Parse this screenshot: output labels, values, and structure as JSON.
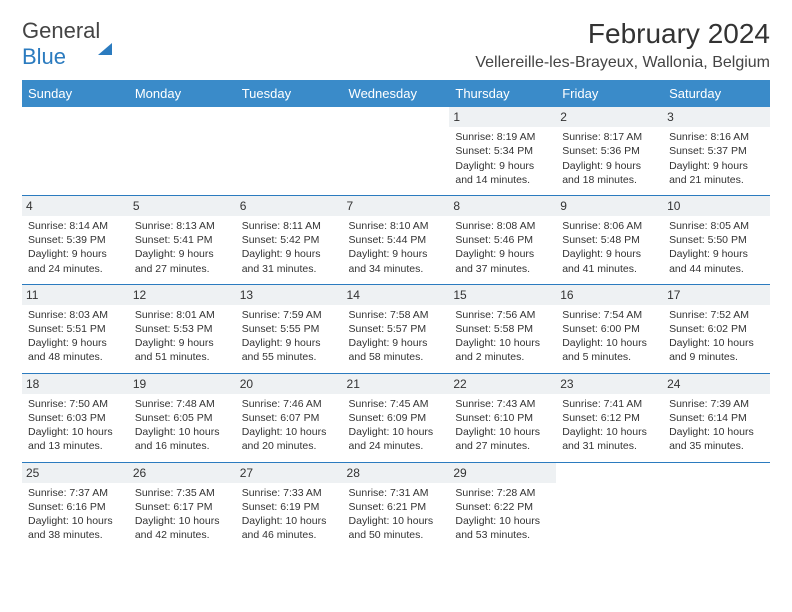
{
  "logo": {
    "text1": "General",
    "text2": "Blue"
  },
  "title": "February 2024",
  "location": "Vellereille-les-Brayeux, Wallonia, Belgium",
  "colors": {
    "header_bg": "#3a8bc9",
    "border": "#2b7bbf",
    "daynum_bg": "#eef1f3",
    "text": "#333333"
  },
  "weekdays": [
    "Sunday",
    "Monday",
    "Tuesday",
    "Wednesday",
    "Thursday",
    "Friday",
    "Saturday"
  ],
  "weeks": [
    [
      {
        "n": "",
        "empty": true
      },
      {
        "n": "",
        "empty": true
      },
      {
        "n": "",
        "empty": true
      },
      {
        "n": "",
        "empty": true
      },
      {
        "n": "1",
        "sr": "8:19 AM",
        "ss": "5:34 PM",
        "dl": "9 hours and 14 minutes."
      },
      {
        "n": "2",
        "sr": "8:17 AM",
        "ss": "5:36 PM",
        "dl": "9 hours and 18 minutes."
      },
      {
        "n": "3",
        "sr": "8:16 AM",
        "ss": "5:37 PM",
        "dl": "9 hours and 21 minutes."
      }
    ],
    [
      {
        "n": "4",
        "sr": "8:14 AM",
        "ss": "5:39 PM",
        "dl": "9 hours and 24 minutes."
      },
      {
        "n": "5",
        "sr": "8:13 AM",
        "ss": "5:41 PM",
        "dl": "9 hours and 27 minutes."
      },
      {
        "n": "6",
        "sr": "8:11 AM",
        "ss": "5:42 PM",
        "dl": "9 hours and 31 minutes."
      },
      {
        "n": "7",
        "sr": "8:10 AM",
        "ss": "5:44 PM",
        "dl": "9 hours and 34 minutes."
      },
      {
        "n": "8",
        "sr": "8:08 AM",
        "ss": "5:46 PM",
        "dl": "9 hours and 37 minutes."
      },
      {
        "n": "9",
        "sr": "8:06 AM",
        "ss": "5:48 PM",
        "dl": "9 hours and 41 minutes."
      },
      {
        "n": "10",
        "sr": "8:05 AM",
        "ss": "5:50 PM",
        "dl": "9 hours and 44 minutes."
      }
    ],
    [
      {
        "n": "11",
        "sr": "8:03 AM",
        "ss": "5:51 PM",
        "dl": "9 hours and 48 minutes."
      },
      {
        "n": "12",
        "sr": "8:01 AM",
        "ss": "5:53 PM",
        "dl": "9 hours and 51 minutes."
      },
      {
        "n": "13",
        "sr": "7:59 AM",
        "ss": "5:55 PM",
        "dl": "9 hours and 55 minutes."
      },
      {
        "n": "14",
        "sr": "7:58 AM",
        "ss": "5:57 PM",
        "dl": "9 hours and 58 minutes."
      },
      {
        "n": "15",
        "sr": "7:56 AM",
        "ss": "5:58 PM",
        "dl": "10 hours and 2 minutes."
      },
      {
        "n": "16",
        "sr": "7:54 AM",
        "ss": "6:00 PM",
        "dl": "10 hours and 5 minutes."
      },
      {
        "n": "17",
        "sr": "7:52 AM",
        "ss": "6:02 PM",
        "dl": "10 hours and 9 minutes."
      }
    ],
    [
      {
        "n": "18",
        "sr": "7:50 AM",
        "ss": "6:03 PM",
        "dl": "10 hours and 13 minutes."
      },
      {
        "n": "19",
        "sr": "7:48 AM",
        "ss": "6:05 PM",
        "dl": "10 hours and 16 minutes."
      },
      {
        "n": "20",
        "sr": "7:46 AM",
        "ss": "6:07 PM",
        "dl": "10 hours and 20 minutes."
      },
      {
        "n": "21",
        "sr": "7:45 AM",
        "ss": "6:09 PM",
        "dl": "10 hours and 24 minutes."
      },
      {
        "n": "22",
        "sr": "7:43 AM",
        "ss": "6:10 PM",
        "dl": "10 hours and 27 minutes."
      },
      {
        "n": "23",
        "sr": "7:41 AM",
        "ss": "6:12 PM",
        "dl": "10 hours and 31 minutes."
      },
      {
        "n": "24",
        "sr": "7:39 AM",
        "ss": "6:14 PM",
        "dl": "10 hours and 35 minutes."
      }
    ],
    [
      {
        "n": "25",
        "sr": "7:37 AM",
        "ss": "6:16 PM",
        "dl": "10 hours and 38 minutes."
      },
      {
        "n": "26",
        "sr": "7:35 AM",
        "ss": "6:17 PM",
        "dl": "10 hours and 42 minutes."
      },
      {
        "n": "27",
        "sr": "7:33 AM",
        "ss": "6:19 PM",
        "dl": "10 hours and 46 minutes."
      },
      {
        "n": "28",
        "sr": "7:31 AM",
        "ss": "6:21 PM",
        "dl": "10 hours and 50 minutes."
      },
      {
        "n": "29",
        "sr": "7:28 AM",
        "ss": "6:22 PM",
        "dl": "10 hours and 53 minutes."
      },
      {
        "n": "",
        "empty": true
      },
      {
        "n": "",
        "empty": true
      }
    ]
  ],
  "labels": {
    "sunrise": "Sunrise: ",
    "sunset": "Sunset: ",
    "daylight": "Daylight: "
  }
}
